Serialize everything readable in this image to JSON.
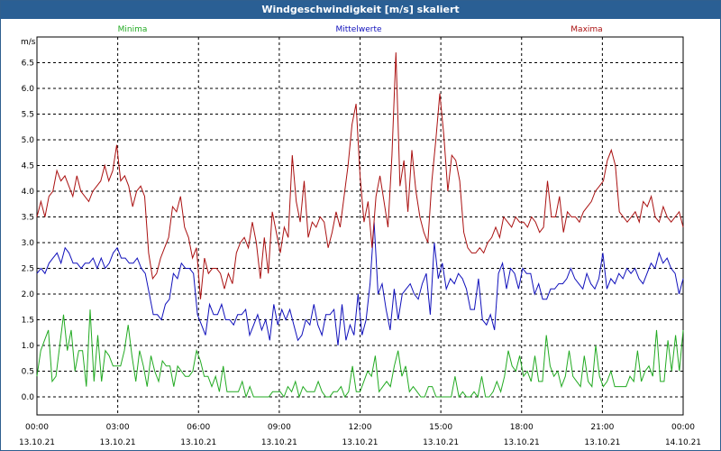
{
  "window": {
    "title": "Windgeschwindigkeit [m/s] skaliert"
  },
  "colors": {
    "minima": "#22aa22",
    "mittel": "#1010bb",
    "maxima": "#aa1111",
    "grid": "#000000"
  },
  "chart_data": {
    "type": "line",
    "title": "Windgeschwindigkeit [m/s] skaliert",
    "ylabel": "m/s",
    "ylim": [
      -0.35,
      7.0
    ],
    "xlim": [
      0,
      24
    ],
    "grid": true,
    "legend": "top",
    "y_ticks": [
      "0.0",
      "0.5",
      "1.0",
      "1.5",
      "2.0",
      "2.5",
      "3.0",
      "3.5",
      "4.0",
      "4.5",
      "5.0",
      "5.5",
      "6.0",
      "6.5"
    ],
    "y_tick_values": [
      0,
      0.5,
      1,
      1.5,
      2,
      2.5,
      3,
      3.5,
      4,
      4.5,
      5,
      5.5,
      6,
      6.5
    ],
    "x_ticks": [
      {
        "time": "00:00",
        "date": "13.10.21",
        "h": 0
      },
      {
        "time": "03:00",
        "date": "13.10.21",
        "h": 3
      },
      {
        "time": "06:00",
        "date": "13.10.21",
        "h": 6
      },
      {
        "time": "09:00",
        "date": "13.10.21",
        "h": 9
      },
      {
        "time": "12:00",
        "date": "13.10.21",
        "h": 12
      },
      {
        "time": "15:00",
        "date": "13.10.21",
        "h": 15
      },
      {
        "time": "18:00",
        "date": "13.10.21",
        "h": 18
      },
      {
        "time": "21:00",
        "date": "13.10.21",
        "h": 21
      },
      {
        "time": "00:00",
        "date": "14.10.21",
        "h": 24
      }
    ],
    "series": [
      {
        "name": "Minima",
        "color": "#22aa22",
        "values": [
          0.4,
          0.9,
          1.1,
          1.3,
          0.3,
          0.4,
          1.0,
          1.6,
          0.9,
          1.3,
          0.5,
          0.9,
          0.9,
          0.2,
          1.7,
          0.3,
          1.2,
          0.3,
          0.9,
          0.8,
          0.6,
          0.6,
          0.6,
          0.9,
          1.4,
          0.8,
          0.3,
          0.9,
          0.6,
          0.2,
          0.8,
          0.5,
          0.3,
          0.7,
          0.6,
          0.6,
          0.2,
          0.6,
          0.5,
          0.4,
          0.4,
          0.5,
          0.9,
          0.7,
          0.4,
          0.4,
          0.2,
          0.4,
          0.1,
          0.6,
          0.1,
          0.1,
          0.1,
          0.1,
          0.3,
          0.0,
          0.2,
          0.0,
          0.0,
          0.0,
          0.0,
          0.0,
          0.1,
          0.1,
          0.1,
          0.0,
          0.2,
          0.1,
          0.3,
          0.0,
          0.2,
          0.1,
          0.1,
          0.1,
          0.3,
          0.1,
          0.0,
          0.0,
          0.1,
          0.1,
          0.2,
          0.0,
          0.1,
          0.6,
          0.1,
          0.1,
          0.3,
          0.5,
          0.4,
          0.8,
          0.1,
          0.2,
          0.3,
          0.2,
          0.6,
          0.9,
          0.4,
          0.6,
          0.1,
          0.2,
          0.1,
          0.0,
          0.0,
          0.2,
          0.2,
          0.0,
          0.0,
          0.0,
          0.0,
          0.0,
          0.4,
          0.0,
          0.1,
          0.0,
          0.0,
          0.1,
          0.0,
          0.4,
          0.0,
          0.0,
          0.1,
          0.3,
          0.1,
          0.4,
          0.9,
          0.6,
          0.5,
          0.8,
          0.4,
          0.5,
          0.3,
          0.8,
          0.3,
          0.3,
          1.2,
          0.6,
          0.4,
          0.5,
          0.2,
          0.4,
          0.9,
          0.4,
          0.3,
          0.2,
          0.8,
          0.3,
          0.2,
          1.0,
          0.4,
          0.2,
          0.3,
          0.5,
          0.2,
          0.2,
          0.2,
          0.2,
          0.4,
          0.3,
          0.9,
          0.3,
          0.5,
          0.6,
          0.4,
          1.3,
          0.3,
          0.3,
          1.1,
          0.5,
          1.2,
          0.5,
          1.3
        ]
      },
      {
        "name": "Mittelwerte",
        "color": "#1010bb",
        "values": [
          2.4,
          2.5,
          2.4,
          2.6,
          2.7,
          2.8,
          2.6,
          2.9,
          2.8,
          2.6,
          2.6,
          2.5,
          2.6,
          2.6,
          2.7,
          2.5,
          2.7,
          2.5,
          2.6,
          2.8,
          2.9,
          2.7,
          2.7,
          2.6,
          2.6,
          2.7,
          2.5,
          2.4,
          2.0,
          1.6,
          1.6,
          1.5,
          1.8,
          1.9,
          2.4,
          2.3,
          2.6,
          2.5,
          2.5,
          2.4,
          1.6,
          1.4,
          1.2,
          1.8,
          1.6,
          1.6,
          1.8,
          1.5,
          1.5,
          1.4,
          1.6,
          1.6,
          1.7,
          1.2,
          1.4,
          1.6,
          1.3,
          1.5,
          1.1,
          1.8,
          1.4,
          1.7,
          1.5,
          1.7,
          1.4,
          1.1,
          1.2,
          1.5,
          1.4,
          1.8,
          1.4,
          1.2,
          1.6,
          1.6,
          1.7,
          1.0,
          1.8,
          1.1,
          1.4,
          1.2,
          2.0,
          1.2,
          1.5,
          2.2,
          3.4,
          2.0,
          2.2,
          1.7,
          1.3,
          2.1,
          1.5,
          2.0,
          2.1,
          2.2,
          2.0,
          1.9,
          2.2,
          2.4,
          1.6,
          3.0,
          2.3,
          2.6,
          2.1,
          2.3,
          2.2,
          2.4,
          2.3,
          2.1,
          1.7,
          1.7,
          2.3,
          1.5,
          1.4,
          1.6,
          1.3,
          2.4,
          2.6,
          2.1,
          2.5,
          2.4,
          2.1,
          2.5,
          2.4,
          2.4,
          2.0,
          2.2,
          1.9,
          1.9,
          2.1,
          2.1,
          2.2,
          2.2,
          2.3,
          2.5,
          2.3,
          2.2,
          2.1,
          2.4,
          2.2,
          2.1,
          2.3,
          2.8,
          2.1,
          2.3,
          2.2,
          2.4,
          2.3,
          2.5,
          2.4,
          2.5,
          2.3,
          2.2,
          2.4,
          2.6,
          2.5,
          2.8,
          2.6,
          2.7,
          2.5,
          2.4,
          2.0,
          2.3
        ]
      },
      {
        "name": "Maxima",
        "color": "#aa1111",
        "values": [
          3.5,
          3.8,
          3.5,
          3.9,
          4.0,
          4.4,
          4.2,
          4.3,
          4.1,
          3.9,
          4.3,
          4.0,
          3.9,
          3.8,
          4.0,
          4.1,
          4.2,
          4.5,
          4.2,
          4.4,
          4.9,
          4.2,
          4.3,
          4.1,
          3.7,
          4.0,
          4.1,
          3.9,
          2.8,
          2.3,
          2.4,
          2.7,
          2.9,
          3.1,
          3.7,
          3.6,
          3.9,
          3.3,
          3.1,
          2.7,
          2.9,
          1.9,
          2.7,
          2.4,
          2.5,
          2.5,
          2.4,
          2.1,
          2.4,
          2.2,
          2.8,
          3.0,
          3.1,
          2.9,
          3.4,
          3.0,
          2.3,
          3.1,
          2.4,
          3.6,
          3.2,
          2.8,
          3.3,
          3.1,
          4.7,
          3.8,
          3.4,
          4.2,
          3.1,
          3.4,
          3.3,
          3.5,
          3.4,
          2.9,
          3.2,
          3.6,
          3.3,
          3.9,
          4.5,
          5.3,
          5.7,
          4.3,
          3.4,
          3.8,
          2.9,
          3.9,
          4.3,
          3.8,
          3.3,
          4.7,
          6.7,
          4.1,
          4.6,
          3.6,
          4.8,
          4.0,
          3.5,
          3.2,
          3.0,
          4.2,
          5.0,
          5.9,
          5.1,
          4.0,
          4.7,
          4.6,
          4.2,
          3.2,
          2.9,
          2.8,
          2.8,
          2.9,
          2.8,
          3.0,
          3.1,
          3.3,
          3.1,
          3.5,
          3.4,
          3.3,
          3.5,
          3.4,
          3.4,
          3.3,
          3.5,
          3.4,
          3.2,
          3.3,
          4.2,
          3.5,
          3.5,
          3.9,
          3.2,
          3.6,
          3.5,
          3.5,
          3.4,
          3.6,
          3.7,
          3.8,
          4.0,
          4.1,
          4.2,
          4.6,
          4.8,
          4.5,
          3.6,
          3.5,
          3.4,
          3.5,
          3.6,
          3.4,
          3.8,
          3.7,
          3.9,
          3.5,
          3.4,
          3.7,
          3.5,
          3.4,
          3.5,
          3.6,
          3.3
        ]
      }
    ]
  }
}
